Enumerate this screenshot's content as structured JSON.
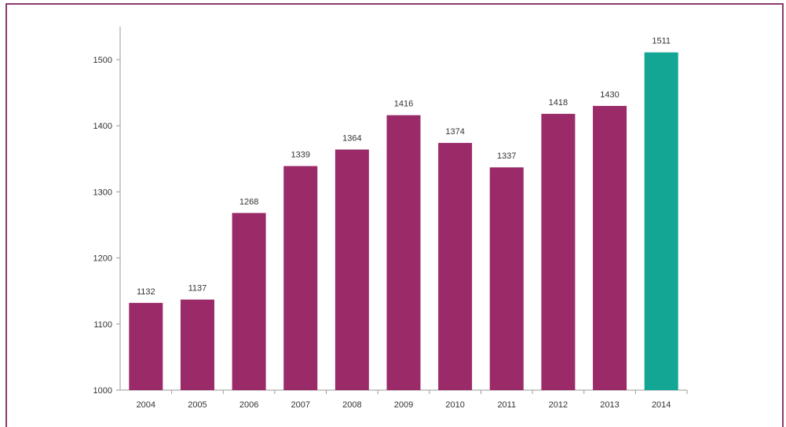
{
  "colors": {
    "bar_primary": "#9a2a68",
    "bar_highlight": "#13a695",
    "frame": "#8c3a6b",
    "axis": "#9a9a9a"
  },
  "chart_data": {
    "type": "bar",
    "categories": [
      "2004",
      "2005",
      "2006",
      "2007",
      "2008",
      "2009",
      "2010",
      "2011",
      "2012",
      "2013",
      "2014"
    ],
    "values": [
      1132,
      1137,
      1268,
      1339,
      1364,
      1416,
      1374,
      1337,
      1418,
      1430,
      1511
    ],
    "data_labels": [
      "1132",
      "1137",
      "1268",
      "1339",
      "1364",
      "1416",
      "1374",
      "1337",
      "1418",
      "1430",
      "1511"
    ],
    "highlighted_category": "2014",
    "ylim": [
      1000,
      1550
    ],
    "yticks": [
      1000,
      1100,
      1200,
      1300,
      1400,
      1500
    ],
    "title": "",
    "xlabel": "",
    "ylabel": "",
    "grid": false,
    "legend": "none"
  }
}
